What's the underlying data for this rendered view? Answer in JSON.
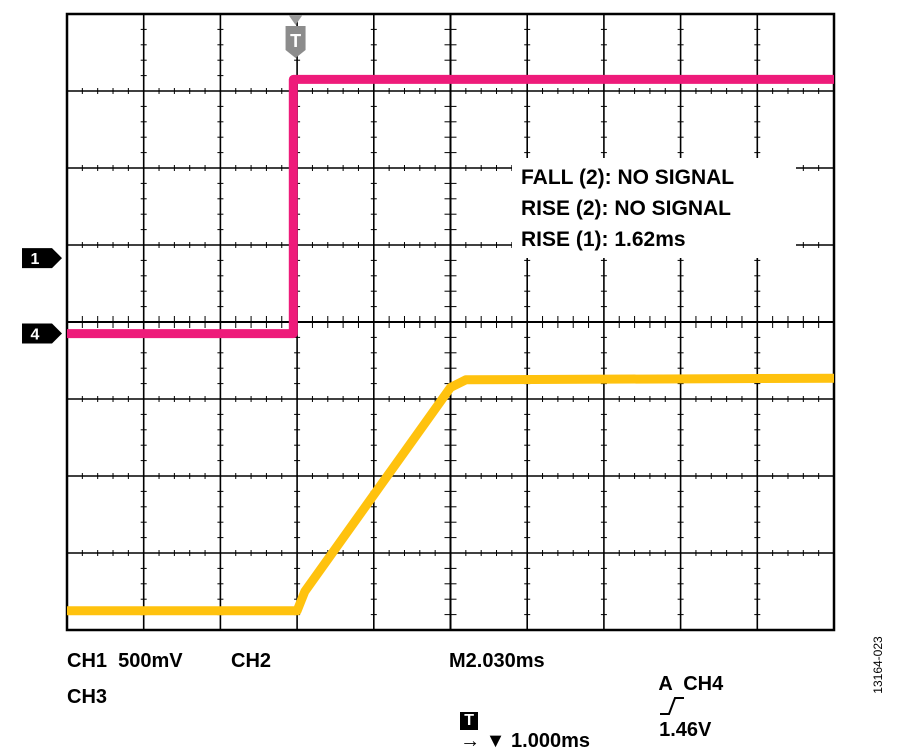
{
  "chart_data": {
    "type": "line",
    "title": "",
    "xlabel": "",
    "ylabel": "",
    "xlim": [
      0,
      10
    ],
    "ylim": [
      0,
      8
    ],
    "grid": true,
    "divisions": {
      "x": 10,
      "y": 8
    },
    "series": [
      {
        "channel": "4",
        "color": "#ee1b7a",
        "points": [
          [
            0,
            3.85
          ],
          [
            2.95,
            3.85
          ],
          [
            2.95,
            7.15
          ],
          [
            3.05,
            7.15
          ],
          [
            10,
            7.15
          ]
        ]
      },
      {
        "channel": "1",
        "color": "#ffc20e",
        "points": [
          [
            0,
            0.25
          ],
          [
            3.0,
            0.25
          ],
          [
            3.1,
            0.5
          ],
          [
            5.0,
            3.15
          ],
          [
            5.2,
            3.25
          ],
          [
            10,
            3.27
          ]
        ]
      }
    ],
    "channel_markers": [
      {
        "label": "1",
        "y": 4.83
      },
      {
        "label": "4",
        "y": 3.85
      }
    ],
    "trigger_marker": {
      "label": "T",
      "x": 2.98
    },
    "measurements": [
      "FALL (2): NO SIGNAL",
      "RISE (2): NO SIGNAL",
      "RISE (1): 1.62ms"
    ],
    "footer": {
      "ch1": "CH1  500mV",
      "ch2": "CH2",
      "ch3": "CH3",
      "timebase": "M2.030ms",
      "trigger_label": "A  CH4",
      "trigger_level": "1.46V",
      "position_marker": "T",
      "position": "→ ▼ 1.000ms"
    }
  },
  "figure_id": "13164-023"
}
